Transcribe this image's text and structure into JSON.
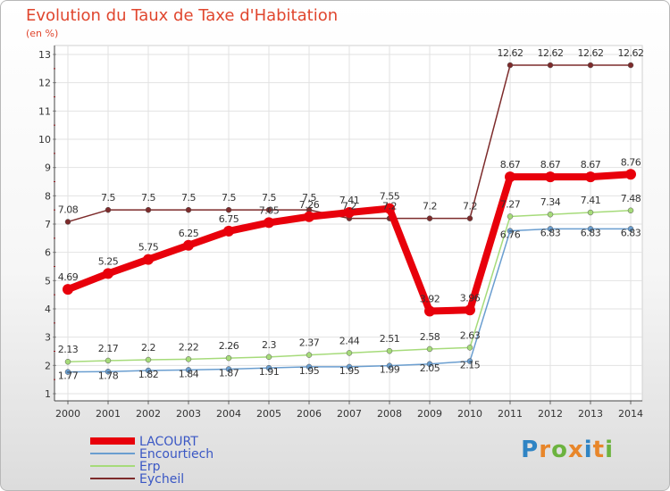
{
  "title": "Evolution du Taux de Taxe d'Habitation",
  "subtitle": "(en %)",
  "brand": {
    "text": "Proxiti",
    "letters": [
      "P",
      "r",
      "o",
      "x",
      "i",
      "t",
      "i"
    ],
    "colors": [
      "#2f84c4",
      "#e8862a",
      "#6cb33f",
      "#e8862a",
      "#2f84c4",
      "#e8862a",
      "#6cb33f"
    ]
  },
  "chart_data": {
    "type": "line",
    "title": "Evolution du Taux de Taxe d'Habitation",
    "ylabel": "(en %)",
    "x": [
      "2000",
      "2001",
      "2002",
      "2003",
      "2004",
      "2005",
      "2006",
      "2007",
      "2008",
      "2009",
      "2010",
      "2011",
      "2012",
      "2013",
      "2014"
    ],
    "ylim": [
      1,
      13
    ],
    "yticks": [
      "1",
      "2",
      "3",
      "4",
      "5",
      "6",
      "7",
      "8",
      "9",
      "10",
      "11",
      "12",
      "13"
    ],
    "grid": true,
    "legend_position": "bottom-left",
    "series": [
      {
        "name": "LACOURT",
        "color": "#e8000b",
        "values": [
          4.69,
          5.25,
          5.75,
          6.25,
          6.75,
          7.05,
          7.26,
          7.41,
          7.55,
          3.92,
          3.96,
          8.67,
          8.67,
          8.67,
          8.76
        ],
        "labels": [
          "4.69",
          "5.25",
          "5.75",
          "6.25",
          "6.75",
          "7.05",
          "7.26",
          "7.41",
          "7.55",
          "3.92",
          "3.96",
          "8.67",
          "8.67",
          "8.67",
          "8.76"
        ]
      },
      {
        "name": "Encourtiech",
        "color": "#6a9ed0",
        "values": [
          1.77,
          1.78,
          1.82,
          1.84,
          1.87,
          1.91,
          1.95,
          1.95,
          1.99,
          2.05,
          2.15,
          6.76,
          6.83,
          6.83,
          6.83
        ],
        "labels": [
          "1.77",
          "1.78",
          "1.82",
          "1.84",
          "1.87",
          "1.91",
          "1.95",
          "1.95",
          "1.99",
          "2.05",
          "2.15",
          "6.76",
          "6.83",
          "6.83",
          "6.83"
        ]
      },
      {
        "name": "Erp",
        "color": "#a6db7a",
        "values": [
          2.13,
          2.17,
          2.2,
          2.22,
          2.26,
          2.3,
          2.37,
          2.44,
          2.51,
          2.58,
          2.63,
          7.27,
          7.34,
          7.41,
          7.48
        ],
        "labels": [
          "2.13",
          "2.17",
          "2.2",
          "2.22",
          "2.26",
          "2.3",
          "2.37",
          "2.44",
          "2.51",
          "2.58",
          "2.63",
          "7.27",
          "7.34",
          "7.41",
          "7.48"
        ]
      },
      {
        "name": "Eycheil",
        "color": "#7d2b2b",
        "values": [
          7.08,
          7.5,
          7.5,
          7.5,
          7.5,
          7.5,
          7.5,
          7.2,
          7.2,
          7.2,
          7.2,
          12.62,
          12.62,
          12.62,
          12.62
        ],
        "labels": [
          "7.08",
          "7.5",
          "7.5",
          "7.5",
          "7.5",
          "7.5",
          "7.5",
          "7.2",
          "7.2",
          "7.2",
          "7.2",
          "12.62",
          "12.62",
          "12.62",
          "12.62"
        ]
      }
    ]
  }
}
